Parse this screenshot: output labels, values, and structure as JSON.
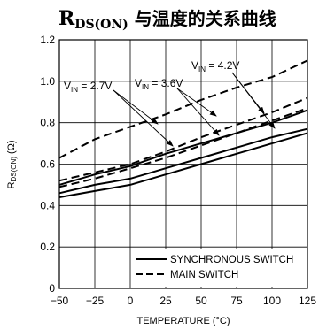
{
  "chart_data": {
    "type": "line",
    "title": {
      "main": "R",
      "sub": "DS(ON)",
      "suffix": " 与温度的关系曲线"
    },
    "xlabel": "TEMPERATURE (°C)",
    "ylabel": {
      "main": "R",
      "sub": "DS(ON)",
      "suffix": " (Ω)"
    },
    "xlim": [
      -50,
      125
    ],
    "ylim": [
      0,
      1.2
    ],
    "xticks": [
      "−50",
      "−25",
      "0",
      "25",
      "50",
      "75",
      "100",
      "125"
    ],
    "xtick_values": [
      -50,
      -25,
      0,
      25,
      50,
      75,
      100,
      125
    ],
    "yticks": [
      "0",
      "0.2",
      "0.4",
      "0.6",
      "0.8",
      "1.0",
      "1.2"
    ],
    "ytick_values": [
      0,
      0.2,
      0.4,
      0.6,
      0.8,
      1.0,
      1.2
    ],
    "grid": true,
    "legend_position": "bottom-right",
    "legend": [
      {
        "label": "SYNCHRONOUS SWITCH",
        "style": "solid"
      },
      {
        "label": "MAIN SWITCH",
        "style": "dashed"
      }
    ],
    "annotations": [
      {
        "main": "V",
        "sub": "IN",
        "suffix": " = 2.7V"
      },
      {
        "main": "V",
        "sub": "IN",
        "suffix": " = 3.6V"
      },
      {
        "main": "V",
        "sub": "IN",
        "suffix": " = 4.2V"
      }
    ],
    "series": [
      {
        "group": "SYNCHRONOUS SWITCH",
        "vin": "2.7V",
        "style": "solid",
        "x": [
          -50,
          -25,
          0,
          25,
          50,
          75,
          100,
          125
        ],
        "y": [
          0.5,
          0.55,
          0.59,
          0.65,
          0.7,
          0.75,
          0.8,
          0.86
        ]
      },
      {
        "group": "SYNCHRONOUS SWITCH",
        "vin": "3.6V",
        "style": "solid",
        "x": [
          -50,
          -25,
          0,
          25,
          50,
          75,
          100,
          125
        ],
        "y": [
          0.46,
          0.5,
          0.53,
          0.58,
          0.63,
          0.68,
          0.73,
          0.77
        ]
      },
      {
        "group": "SYNCHRONOUS SWITCH",
        "vin": "4.2V",
        "style": "solid",
        "x": [
          -50,
          -25,
          0,
          25,
          50,
          75,
          100,
          125
        ],
        "y": [
          0.44,
          0.47,
          0.5,
          0.55,
          0.6,
          0.65,
          0.7,
          0.75
        ]
      },
      {
        "group": "MAIN SWITCH",
        "vin": "2.7V",
        "style": "dashed",
        "x": [
          -50,
          -25,
          0,
          25,
          50,
          75,
          100,
          125
        ],
        "y": [
          0.63,
          0.72,
          0.78,
          0.84,
          0.91,
          0.97,
          1.02,
          1.1
        ]
      },
      {
        "group": "MAIN SWITCH",
        "vin": "3.6V",
        "style": "dashed",
        "x": [
          -50,
          -25,
          0,
          25,
          50,
          75,
          100,
          125
        ],
        "y": [
          0.52,
          0.56,
          0.6,
          0.66,
          0.73,
          0.79,
          0.85,
          0.92
        ]
      },
      {
        "group": "MAIN SWITCH",
        "vin": "4.2V",
        "style": "dashed",
        "x": [
          -50,
          -25,
          0,
          25,
          50,
          75,
          100,
          125
        ],
        "y": [
          0.49,
          0.53,
          0.58,
          0.63,
          0.69,
          0.75,
          0.81,
          0.87
        ]
      }
    ]
  }
}
